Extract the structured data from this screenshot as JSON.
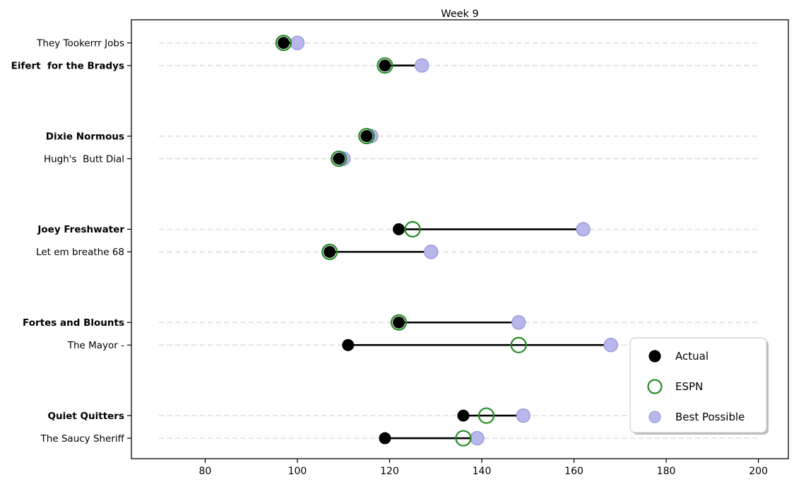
{
  "title": "Week 9",
  "colors": {
    "actual": "#000000",
    "espn": "#228B22",
    "best_fill": "#b7b7ec",
    "best_edge": "#9a9ade",
    "row_line": "#d9d9d9",
    "range_line": "#000000",
    "spine": "#000000",
    "legend_border": "#cccccc",
    "legend_shadow": "#bdbdbd",
    "legend_bg": "#ffffff"
  },
  "legend": {
    "position": "lower-right",
    "items": [
      {
        "label": "Actual",
        "marker": "filled-circle-icon",
        "color": "#000000"
      },
      {
        "label": "ESPN",
        "marker": "open-circle-icon",
        "color": "#228B22"
      },
      {
        "label": "Best Possible",
        "marker": "filled-circle-icon",
        "color": "#b7b7ec"
      }
    ]
  },
  "chart_data": {
    "type": "scatter",
    "title": "Week 9",
    "xlabel": "",
    "ylabel": "",
    "xlim": [
      64,
      206.5
    ],
    "xticks": [
      80,
      100,
      120,
      140,
      160,
      180,
      200
    ],
    "grid": "dashed-row-guides",
    "row_line_range": [
      70,
      200
    ],
    "legend_position": "lower-right",
    "series_names": [
      "Actual",
      "ESPN",
      "Best Possible"
    ],
    "teams": [
      {
        "name": "They Tookerrr Jobs",
        "bold": false,
        "actual": 97,
        "espn": 97,
        "best": 100
      },
      {
        "name": "Eifert  for the Bradys",
        "bold": true,
        "actual": 119,
        "espn": 119,
        "best": 127
      },
      {
        "name": "Dixie Normous",
        "bold": true,
        "actual": 115,
        "espn": 115,
        "best": 116
      },
      {
        "name": "Hugh's  Butt Dial",
        "bold": false,
        "actual": 109,
        "espn": 109,
        "best": 110
      },
      {
        "name": "Joey Freshwater",
        "bold": true,
        "actual": 122,
        "espn": 125,
        "best": 162
      },
      {
        "name": "Let em breathe 68",
        "bold": false,
        "actual": 107,
        "espn": 107,
        "best": 129
      },
      {
        "name": "Fortes and Blounts",
        "bold": true,
        "actual": 122,
        "espn": 122,
        "best": 148
      },
      {
        "name": "The Mayor -",
        "bold": false,
        "actual": 111,
        "espn": 148,
        "best": 168
      },
      {
        "name": "Quiet Quitters",
        "bold": true,
        "actual": 136,
        "espn": 141,
        "best": 149
      },
      {
        "name": "The Saucy Sheriff",
        "bold": false,
        "actual": 119,
        "espn": 136,
        "best": 139
      }
    ]
  }
}
